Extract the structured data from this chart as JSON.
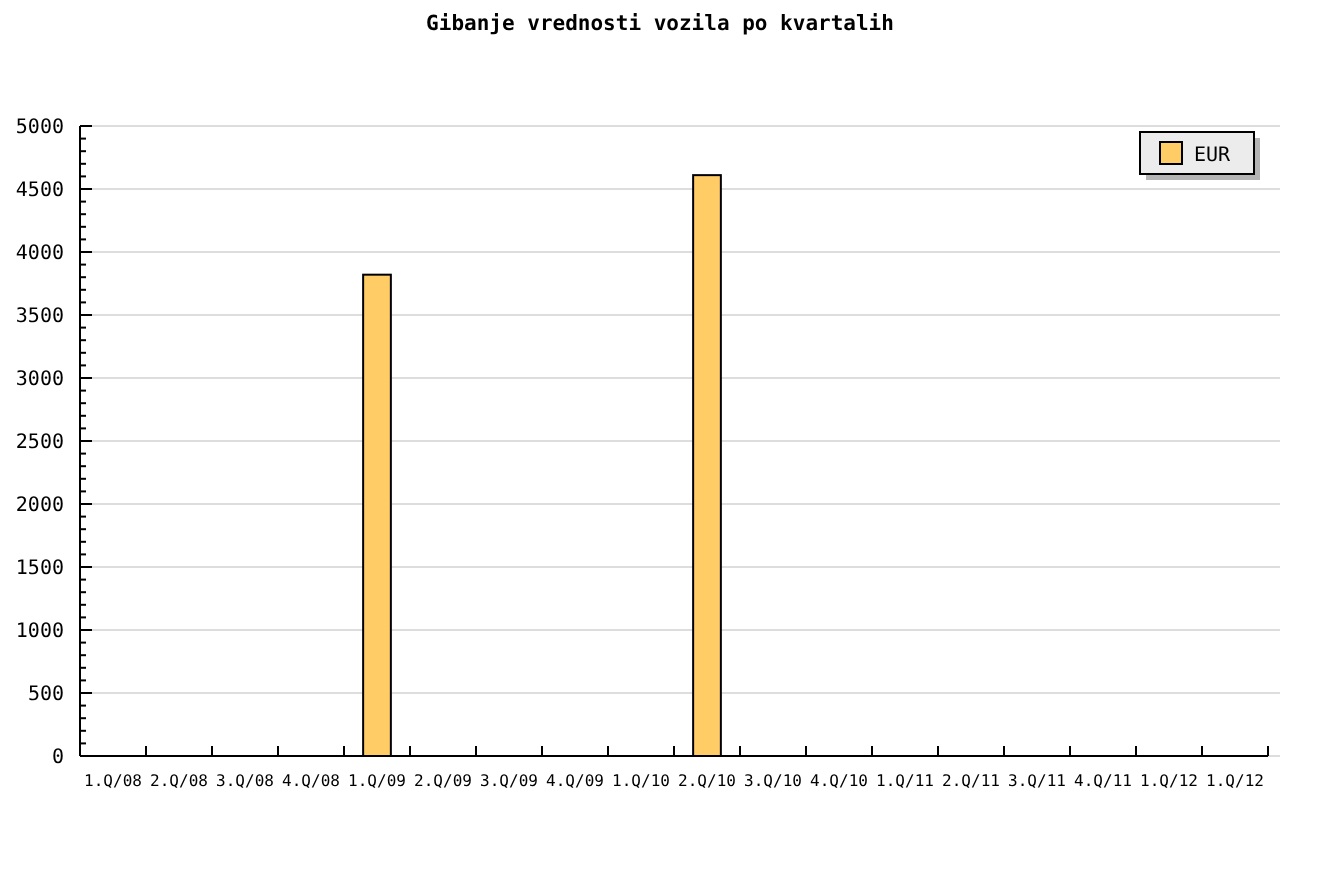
{
  "chart_data": {
    "type": "bar",
    "title": "Gibanje vrednosti vozila po kvartalih",
    "categories": [
      "1.Q/08",
      "2.Q/08",
      "3.Q/08",
      "4.Q/08",
      "1.Q/09",
      "2.Q/09",
      "3.Q/09",
      "4.Q/09",
      "1.Q/10",
      "2.Q/10",
      "3.Q/10",
      "4.Q/10",
      "1.Q/11",
      "2.Q/11",
      "3.Q/11",
      "4.Q/11",
      "1.Q/12",
      "1.Q/12"
    ],
    "series": [
      {
        "name": "EUR",
        "color": "#ffcc66",
        "values": [
          null,
          null,
          null,
          null,
          3820,
          null,
          null,
          null,
          null,
          4610,
          null,
          null,
          null,
          null,
          null,
          null,
          null,
          null
        ]
      }
    ],
    "ylim": [
      0,
      5000
    ],
    "yticks": [
      0,
      {
        "value": 100,
        "label": null
      },
      {
        "value": 200,
        "label": null
      },
      {
        "value": 300,
        "label": null
      },
      {
        "value": 400,
        "label": null
      },
      500,
      {
        "value": 600,
        "label": null
      },
      {
        "value": 700,
        "label": null
      },
      {
        "value": 800,
        "label": null
      },
      {
        "value": 900,
        "label": null
      },
      1000,
      {
        "value": 1100,
        "label": null
      },
      {
        "value": 1200,
        "label": null
      },
      {
        "value": 1300,
        "label": null
      },
      {
        "value": 1400,
        "label": null
      },
      1500,
      {
        "value": 1600,
        "label": null
      },
      {
        "value": 1700,
        "label": null
      },
      {
        "value": 1800,
        "label": null
      },
      {
        "value": 1900,
        "label": null
      },
      2000,
      {
        "value": 2100,
        "label": null
      },
      {
        "value": 2200,
        "label": null
      },
      {
        "value": 2300,
        "label": null
      },
      {
        "value": 2400,
        "label": null
      },
      2500,
      {
        "value": 2600,
        "label": null
      },
      {
        "value": 2700,
        "label": null
      },
      {
        "value": 2800,
        "label": null
      },
      {
        "value": 2900,
        "label": null
      },
      3000,
      {
        "value": 3100,
        "label": null
      },
      {
        "value": 3200,
        "label": null
      },
      {
        "value": 3300,
        "label": null
      },
      {
        "value": 3400,
        "label": null
      },
      3500,
      {
        "value": 3600,
        "label": null
      },
      {
        "value": 3700,
        "label": null
      },
      {
        "value": 3800,
        "label": null
      },
      {
        "value": 3900,
        "label": null
      },
      4000,
      {
        "value": 4100,
        "label": null
      },
      {
        "value": 4200,
        "label": null
      },
      {
        "value": 4300,
        "label": null
      },
      {
        "value": 4400,
        "label": null
      },
      4500,
      {
        "value": 4600,
        "label": null
      },
      {
        "value": 4700,
        "label": null
      },
      {
        "value": 4800,
        "label": null
      },
      {
        "value": 4900,
        "label": null
      },
      5000
    ],
    "grid": "y",
    "legend": "top right"
  }
}
